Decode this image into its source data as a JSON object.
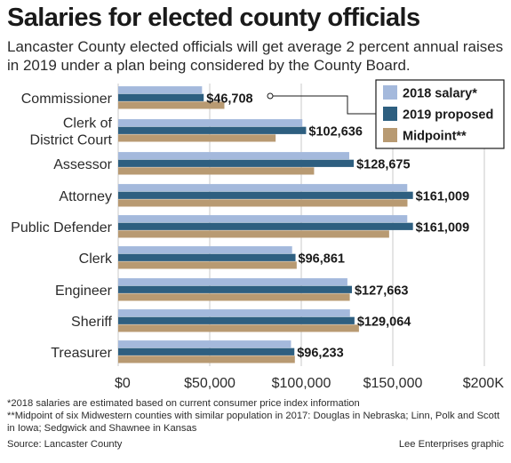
{
  "title": "Salaries for elected county officials",
  "subtitle": "Lancaster County elected officials will get average 2 percent annual raises in 2019 under a plan being considered by the County Board.",
  "footnotes": {
    "note1": "*2018 salaries are estimated based on current consumer price index information",
    "note2": "**Midpoint of six Midwestern counties with similar population in 2017: Douglas in Nebraska; Linn, Polk and Scott in Iowa; Sedgwick and Shawnee in Kansas",
    "source": "Source: Lancaster County",
    "credit": "Lee Enterprises graphic"
  },
  "chart_data": {
    "type": "bar",
    "orientation": "horizontal",
    "categories": [
      "Commissioner",
      "Clerk of District Court",
      "Assessor",
      "Attorney",
      "Public Defender",
      "Clerk",
      "Engineer",
      "Sheriff",
      "Treasurer"
    ],
    "category_lines": [
      [
        "Commissioner"
      ],
      [
        "Clerk of",
        "District Court"
      ],
      [
        "Assessor"
      ],
      [
        "Attorney"
      ],
      [
        "Public Defender"
      ],
      [
        "Clerk"
      ],
      [
        "Engineer"
      ],
      [
        "Sheriff"
      ],
      [
        "Treasurer"
      ]
    ],
    "series": [
      {
        "name": "2018 salary*",
        "color": "#a4b9dc",
        "values": [
          45800,
          100600,
          126200,
          157900,
          157900,
          95000,
          125200,
          126600,
          94400
        ]
      },
      {
        "name": "2019 proposed",
        "color": "#2e5f80",
        "values": [
          46708,
          102636,
          128675,
          161009,
          161009,
          96861,
          127663,
          129064,
          96233
        ]
      },
      {
        "name": "Midpoint**",
        "color": "#b89a72",
        "values": [
          58000,
          86000,
          107000,
          158000,
          148000,
          97500,
          126500,
          131500,
          96500
        ]
      }
    ],
    "value_labels": [
      "$46,708",
      "$102,636",
      "$128,675",
      "$161,009",
      "$161,009",
      "$96,861",
      "$127,663",
      "$129,064",
      "$96,233"
    ],
    "x_ticks": [
      0,
      50000,
      100000,
      150000,
      200000
    ],
    "x_tick_labels": [
      "$0",
      "$50,000",
      "$100,000",
      "$150,000",
      "$200K"
    ],
    "xlim": [
      0,
      200000
    ],
    "legend_position": "top-right"
  }
}
